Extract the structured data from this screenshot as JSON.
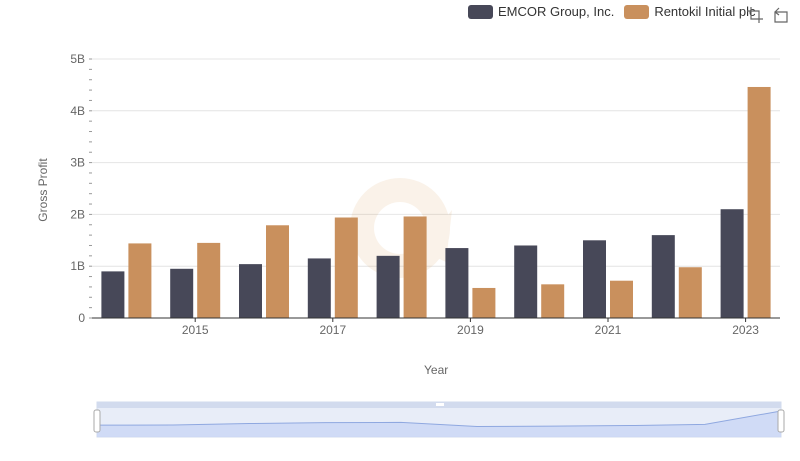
{
  "legend": {
    "items": [
      {
        "label": "EMCOR Group, Inc.",
        "color": "#474858"
      },
      {
        "label": "Rentokil Initial plc",
        "color": "#c9905d"
      }
    ]
  },
  "toolbox": {
    "icons": [
      "zoom-icon",
      "restore-icon"
    ]
  },
  "chart_data": {
    "type": "bar",
    "x": [
      2014,
      2015,
      2016,
      2017,
      2018,
      2019,
      2020,
      2021,
      2022,
      2023
    ],
    "x_tick_labels": [
      "2015",
      "2017",
      "2019",
      "2021",
      "2023"
    ],
    "ylabel": "Gross Profit",
    "xlabel": "Year",
    "y_tick_labels": [
      "0",
      "1B",
      "2B",
      "3B",
      "4B",
      "5B"
    ],
    "ylim": [
      0,
      5000000000
    ],
    "grid": true,
    "legend_position": "top-right",
    "series": [
      {
        "name": "EMCOR Group, Inc.",
        "color": "#474858",
        "values": [
          900000000,
          950000000,
          1040000000,
          1150000000,
          1200000000,
          1350000000,
          1400000000,
          1500000000,
          1600000000,
          2100000000
        ]
      },
      {
        "name": "Rentokil Initial plc",
        "color": "#c9905d",
        "values": [
          1440000000,
          1450000000,
          1790000000,
          1940000000,
          1960000000,
          580000000,
          650000000,
          720000000,
          980000000,
          4460000000
        ]
      }
    ]
  }
}
